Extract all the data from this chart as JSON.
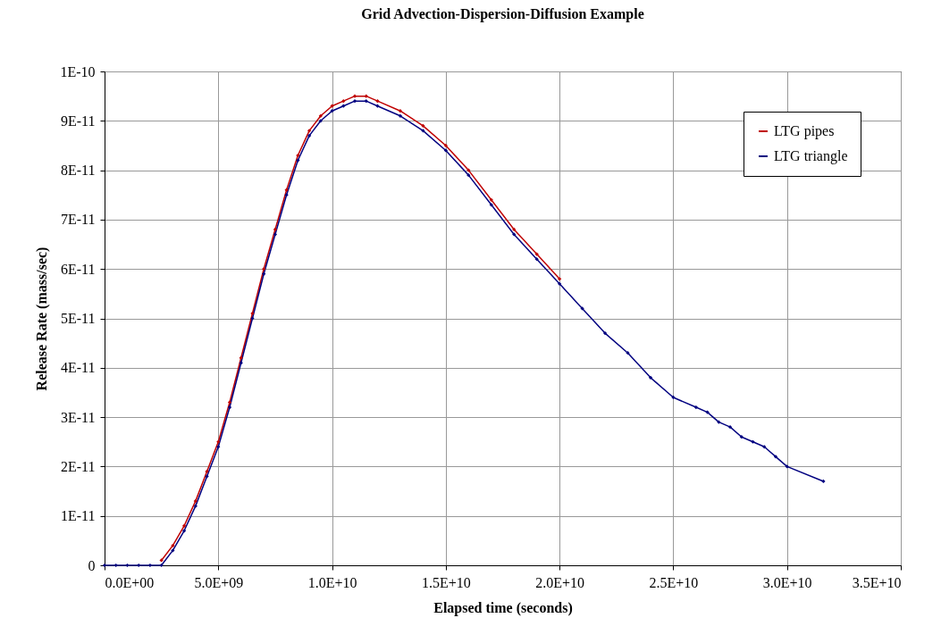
{
  "chart_data": {
    "type": "line",
    "title": "Grid Advection-Dispersion-Diffusion Example",
    "xlabel": "Elapsed time (seconds)",
    "ylabel": "Release Rate (mass/sec)",
    "x": [
      0,
      500000000.0,
      1000000000.0,
      1500000000.0,
      2000000000.0,
      2500000000.0,
      3000000000.0,
      3500000000.0,
      4000000000.0,
      4500000000.0,
      5000000000.0,
      5500000000.0,
      6000000000.0,
      6500000000.0,
      7000000000.0,
      7500000000.0,
      8000000000.0,
      8500000000.0,
      9000000000.0,
      9500000000.0,
      10000000000.0,
      10500000000.0,
      11000000000.0,
      11500000000.0,
      12000000000.0,
      13000000000.0,
      14000000000.0,
      15000000000.0,
      16000000000.0,
      17000000000.0,
      18000000000.0,
      19000000000.0,
      20000000000.0,
      21000000000.0,
      22000000000.0,
      23000000000.0,
      24000000000.0,
      25000000000.0,
      26000000000.0,
      26500000000.0,
      27000000000.0,
      27500000000.0,
      28000000000.0,
      28500000000.0,
      29000000000.0,
      29500000000.0,
      30000000000.0,
      31600000000.0
    ],
    "series": [
      {
        "name": "LTG pipes",
        "color": "#c00000",
        "values": [
          null,
          null,
          null,
          null,
          null,
          1e-12,
          4e-12,
          8e-12,
          1.3e-11,
          1.9e-11,
          2.5e-11,
          3.3e-11,
          4.2e-11,
          5.1e-11,
          6e-11,
          6.8e-11,
          7.6e-11,
          8.3e-11,
          8.8e-11,
          9.1e-11,
          9.3e-11,
          9.4e-11,
          9.5e-11,
          9.5e-11,
          9.4e-11,
          9.2e-11,
          8.9e-11,
          8.5e-11,
          8e-11,
          7.4e-11,
          6.8e-11,
          6.3e-11,
          5.8e-11,
          null,
          null,
          null,
          null,
          null,
          null,
          null,
          null,
          null,
          null,
          null,
          null,
          null,
          null,
          null
        ]
      },
      {
        "name": "LTG triangle",
        "color": "#000080",
        "values": [
          0,
          0,
          0,
          0,
          0,
          0,
          3e-12,
          7e-12,
          1.2e-11,
          1.8e-11,
          2.4e-11,
          3.2e-11,
          4.1e-11,
          5e-11,
          5.9e-11,
          6.7e-11,
          7.5e-11,
          8.2e-11,
          8.7e-11,
          9e-11,
          9.2e-11,
          9.3e-11,
          9.4e-11,
          9.4e-11,
          9.3e-11,
          9.1e-11,
          8.8e-11,
          8.4e-11,
          7.9e-11,
          7.3e-11,
          6.7e-11,
          6.2e-11,
          5.7e-11,
          5.2e-11,
          4.7e-11,
          4.3e-11,
          3.8e-11,
          3.4e-11,
          3.2e-11,
          3.1e-11,
          2.9e-11,
          2.8e-11,
          2.6e-11,
          2.5e-11,
          2.4e-11,
          2.2e-11,
          2e-11,
          1.7e-11
        ]
      }
    ],
    "xlim": [
      0,
      35000000000.0
    ],
    "xticks": [
      {
        "value": 0,
        "label": "0.0E+00"
      },
      {
        "value": 5000000000.0,
        "label": "5.0E+09"
      },
      {
        "value": 10000000000.0,
        "label": "1.0E+10"
      },
      {
        "value": 15000000000.0,
        "label": "1.5E+10"
      },
      {
        "value": 20000000000.0,
        "label": "2.0E+10"
      },
      {
        "value": 25000000000.0,
        "label": "2.5E+10"
      },
      {
        "value": 30000000000.0,
        "label": "3.0E+10"
      },
      {
        "value": 35000000000.0,
        "label": "3.5E+10"
      }
    ],
    "ylim": [
      0,
      1e-10
    ],
    "yticks": [
      0,
      {
        "value": 1e-11,
        "label": "1E-11"
      },
      {
        "value": 2e-11,
        "label": "2E-11"
      },
      {
        "value": 3e-11,
        "label": "3E-11"
      },
      {
        "value": 4e-11,
        "label": "4E-11"
      },
      {
        "value": 5e-11,
        "label": "5E-11"
      },
      {
        "value": 6e-11,
        "label": "6E-11"
      },
      {
        "value": 7e-11,
        "label": "7E-11"
      },
      {
        "value": 8e-11,
        "label": "8E-11"
      },
      {
        "value": 9e-11,
        "label": "9E-11"
      },
      {
        "value": 1e-10,
        "label": "1E-10"
      }
    ],
    "grid": true,
    "legend": "top right",
    "marker": "diamond",
    "line_style": "solid"
  }
}
